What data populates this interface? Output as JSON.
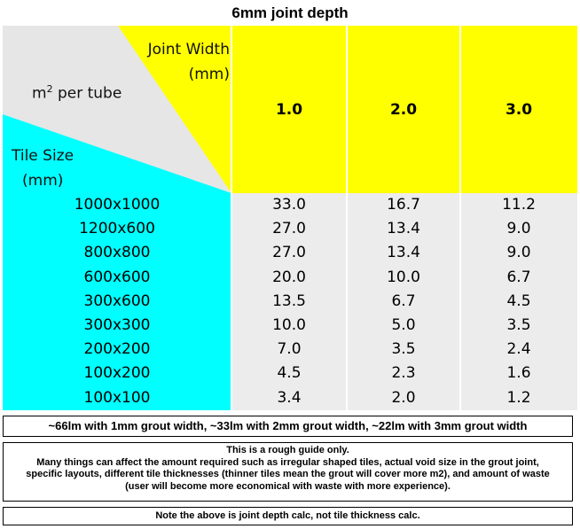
{
  "title": "6mm joint depth",
  "header": {
    "joint_width_label_line1": "Joint Width",
    "joint_width_label_line2": "(mm)",
    "m2_label_prefix": "m",
    "m2_label_sup": "2",
    "m2_label_suffix": " per tube",
    "tile_size_label_line1": "Tile Size",
    "tile_size_label_line2": "(mm)",
    "widths": [
      "1.0",
      "2.0",
      "3.0"
    ]
  },
  "rows": [
    {
      "size": "1000x1000",
      "values": [
        "33.0",
        "16.7",
        "11.2"
      ]
    },
    {
      "size": "1200x600",
      "values": [
        "27.0",
        "13.4",
        "9.0"
      ]
    },
    {
      "size": "800x800",
      "values": [
        "27.0",
        "13.4",
        "9.0"
      ]
    },
    {
      "size": "600x600",
      "values": [
        "20.0",
        "10.0",
        "6.7"
      ]
    },
    {
      "size": "300x600",
      "values": [
        "13.5",
        "6.7",
        "4.5"
      ]
    },
    {
      "size": "300x300",
      "values": [
        "10.0",
        "5.0",
        "3.5"
      ]
    },
    {
      "size": "200x200",
      "values": [
        "7.0",
        "3.5",
        "2.4"
      ]
    },
    {
      "size": "100x200",
      "values": [
        "4.5",
        "2.3",
        "1.6"
      ]
    },
    {
      "size": "100x100",
      "values": [
        "3.4",
        "2.0",
        "1.2"
      ]
    }
  ],
  "notes": {
    "lm_note": "~66lm with 1mm grout width, ~33lm with 2mm grout width, ~22lm with 3mm grout width",
    "guide_line1": "This is a rough guide only.",
    "guide_body": "Many things can affect the amount required such as irregular shaped tiles, actual void size in the grout joint, specific layouts, different tile thicknesses (thinner tiles mean the grout will cover more m2), and amount of waste (user will become more economical with waste with more experience).",
    "depth_note": "Note the above is joint depth calc, not tile thickness calc."
  },
  "colors": {
    "header_yellow": "#ffff00",
    "label_cyan": "#00ffff",
    "cell_grey": "#ececec",
    "corner_grey": "#e6e6e6"
  }
}
